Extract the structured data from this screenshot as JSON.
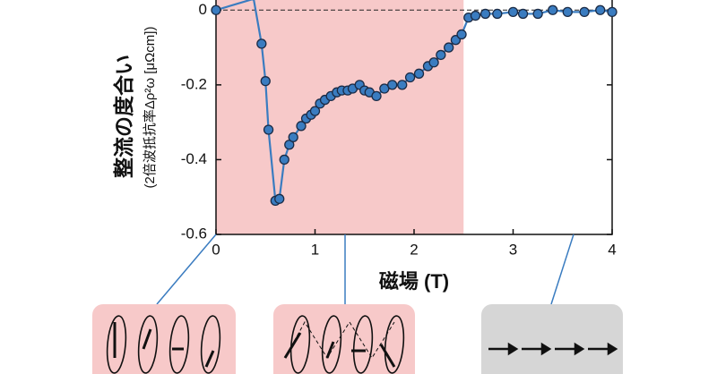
{
  "chart_data": {
    "type": "line",
    "ylabel": "整流の度合い",
    "ylabel2": "(2倍波抵抗率Δρ²ω [μΩcm])",
    "xlabel": "磁場 (T)",
    "series": [
      {
        "color": "#3a7cc0",
        "x": [
          0,
          0.38,
          0.46,
          0.5,
          0.53,
          0.6,
          0.64,
          0.69,
          0.74,
          0.78,
          0.86,
          0.91,
          0.96,
          1.0,
          1.05,
          1.1,
          1.16,
          1.22,
          1.27,
          1.33,
          1.38,
          1.45,
          1.5,
          1.55,
          1.62,
          1.7,
          1.78,
          1.88,
          1.96,
          2.05,
          2.14,
          2.2,
          2.27,
          2.35,
          2.42,
          2.48,
          2.55,
          2.62,
          2.72,
          2.84,
          3.0,
          3.1,
          3.25,
          3.4,
          3.55,
          3.72,
          3.88,
          4.0
        ],
        "values": [
          0,
          0.03,
          -0.09,
          -0.19,
          -0.32,
          -0.51,
          -0.505,
          -0.4,
          -0.36,
          -0.34,
          -0.31,
          -0.29,
          -0.28,
          -0.27,
          -0.25,
          -0.24,
          -0.23,
          -0.22,
          -0.215,
          -0.215,
          -0.21,
          -0.2,
          -0.215,
          -0.22,
          -0.23,
          -0.21,
          -0.2,
          -0.2,
          -0.18,
          -0.17,
          -0.15,
          -0.14,
          -0.12,
          -0.1,
          -0.08,
          -0.065,
          -0.02,
          -0.015,
          -0.01,
          -0.01,
          -0.005,
          -0.01,
          -0.01,
          0,
          -0.005,
          -0.005,
          0,
          -0.005
        ],
        "markers": [
          true,
          false,
          true,
          true,
          true,
          true,
          true,
          true,
          true,
          true,
          true,
          true,
          true,
          true,
          true,
          true,
          true,
          true,
          true,
          true,
          true,
          true,
          true,
          true,
          true,
          true,
          true,
          true,
          true,
          true,
          true,
          true,
          true,
          true,
          true,
          true,
          true,
          true,
          true,
          true,
          true,
          true,
          true,
          true,
          true,
          true,
          true,
          true
        ]
      }
    ],
    "xlim": [
      0,
      4
    ],
    "xticks": [
      0,
      1,
      2,
      3,
      4
    ],
    "ylim": [
      -0.6,
      0.027
    ],
    "yticks": [
      0,
      -0.2,
      -0.4,
      -0.6
    ],
    "shaded_xrange": [
      0,
      2.5
    ],
    "shade_color": "#f7c9c9",
    "reference_y": 0
  }
}
